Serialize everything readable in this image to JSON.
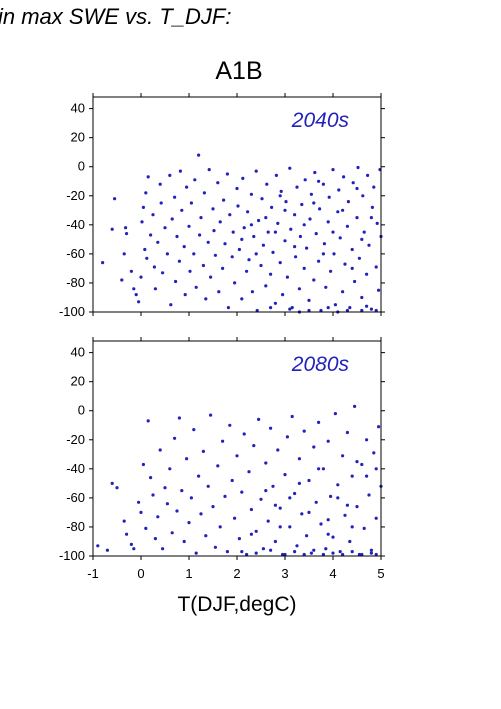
{
  "page": {
    "title": "in max SWE vs. T_DJF:",
    "scenario": "A1B",
    "xlabel": "T(DJF,degC)"
  },
  "colors": {
    "points": "#2222bb",
    "axes": "#000000"
  },
  "chart_data": [
    {
      "type": "scatter",
      "annotation": "2040s",
      "xlim": [
        -1,
        5
      ],
      "ylim": [
        -100,
        48
      ],
      "xticks": [
        -1,
        0,
        1,
        2,
        3,
        4,
        5
      ],
      "yticks": [
        -100,
        -80,
        -60,
        -40,
        -20,
        0,
        20,
        40
      ],
      "show_xtick_labels": false,
      "grid": false,
      "points": [
        [
          -0.8,
          -66
        ],
        [
          -0.6,
          -43
        ],
        [
          -0.55,
          -22
        ],
        [
          -0.4,
          -78
        ],
        [
          -0.35,
          -60
        ],
        [
          -0.32,
          -42
        ],
        [
          -0.3,
          -46
        ],
        [
          -0.2,
          -72
        ],
        [
          -0.15,
          -84
        ],
        [
          -0.1,
          -88
        ],
        [
          -0.05,
          -93
        ],
        [
          0.0,
          -76
        ],
        [
          0.02,
          -38
        ],
        [
          0.05,
          -28
        ],
        [
          0.08,
          -57
        ],
        [
          0.1,
          -18
        ],
        [
          0.12,
          -63
        ],
        [
          0.15,
          -7
        ],
        [
          0.2,
          -47
        ],
        [
          0.25,
          -33
        ],
        [
          0.28,
          -69
        ],
        [
          0.3,
          -84
        ],
        [
          0.35,
          -52
        ],
        [
          0.4,
          -12
        ],
        [
          0.42,
          -25
        ],
        [
          0.45,
          -73
        ],
        [
          0.5,
          -42
        ],
        [
          0.55,
          -60
        ],
        [
          0.6,
          -6
        ],
        [
          0.62,
          -95
        ],
        [
          0.65,
          -36
        ],
        [
          0.7,
          -21
        ],
        [
          0.72,
          -79
        ],
        [
          0.75,
          -48
        ],
        [
          0.8,
          -65
        ],
        [
          0.82,
          -3
        ],
        [
          0.85,
          -30
        ],
        [
          0.9,
          -55
        ],
        [
          0.92,
          -88
        ],
        [
          0.95,
          -14
        ],
        [
          1.0,
          -41
        ],
        [
          1.02,
          -72
        ],
        [
          1.05,
          -25
        ],
        [
          1.1,
          -60
        ],
        [
          1.12,
          -9
        ],
        [
          1.15,
          -83
        ],
        [
          1.2,
          8
        ],
        [
          1.22,
          -47
        ],
        [
          1.25,
          -35
        ],
        [
          1.3,
          -68
        ],
        [
          1.32,
          -18
        ],
        [
          1.35,
          -91
        ],
        [
          1.4,
          -52
        ],
        [
          1.42,
          -2
        ],
        [
          1.45,
          -76
        ],
        [
          1.5,
          -29
        ],
        [
          1.52,
          -44
        ],
        [
          1.55,
          -61
        ],
        [
          1.6,
          -11
        ],
        [
          1.62,
          -86
        ],
        [
          1.65,
          -38
        ],
        [
          1.7,
          -70
        ],
        [
          1.72,
          -23
        ],
        [
          1.75,
          -53
        ],
        [
          1.8,
          -5
        ],
        [
          1.82,
          -97
        ],
        [
          1.85,
          -33
        ],
        [
          1.9,
          -62
        ],
        [
          1.92,
          -45
        ],
        [
          1.95,
          -80
        ],
        [
          2.0,
          -15
        ],
        [
          2.02,
          -27
        ],
        [
          2.05,
          -57
        ],
        [
          2.1,
          -91
        ],
        [
          2.12,
          -8
        ],
        [
          2.15,
          -42
        ],
        [
          2.2,
          -72
        ],
        [
          2.22,
          -31
        ],
        [
          2.25,
          -64
        ],
        [
          2.3,
          -19
        ],
        [
          2.32,
          -86
        ],
        [
          2.35,
          -48
        ],
        [
          2.4,
          -3
        ],
        [
          2.42,
          -99
        ],
        [
          2.45,
          -37
        ],
        [
          2.5,
          -68
        ],
        [
          2.52,
          -22
        ],
        [
          2.55,
          -54
        ],
        [
          2.6,
          -82
        ],
        [
          2.62,
          -12
        ],
        [
          2.65,
          -45
        ],
        [
          2.7,
          -74
        ],
        [
          2.72,
          -28
        ],
        [
          2.75,
          -59
        ],
        [
          2.8,
          -94
        ],
        [
          2.82,
          -6
        ],
        [
          2.85,
          -39
        ],
        [
          2.9,
          -66
        ],
        [
          2.92,
          -17
        ],
        [
          2.95,
          -88
        ],
        [
          3.0,
          -51
        ],
        [
          3.02,
          -24
        ],
        [
          3.05,
          -76
        ],
        [
          3.1,
          -1
        ],
        [
          3.12,
          -43
        ],
        [
          3.15,
          -97
        ],
        [
          3.2,
          -33
        ],
        [
          3.22,
          -62
        ],
        [
          3.25,
          -14
        ],
        [
          3.3,
          -84
        ],
        [
          3.32,
          -48
        ],
        [
          3.35,
          -26
        ],
        [
          3.4,
          -70
        ],
        [
          3.42,
          -9
        ],
        [
          3.45,
          -56
        ],
        [
          3.5,
          -92
        ],
        [
          3.52,
          -36
        ],
        [
          3.55,
          -19
        ],
        [
          3.6,
          -78
        ],
        [
          3.62,
          -4
        ],
        [
          3.65,
          -46
        ],
        [
          3.7,
          -65
        ],
        [
          3.72,
          -29
        ],
        [
          3.75,
          -99
        ],
        [
          3.8,
          -12
        ],
        [
          3.82,
          -53
        ],
        [
          3.85,
          -83
        ],
        [
          3.9,
          -38
        ],
        [
          3.92,
          -21
        ],
        [
          3.95,
          -72
        ],
        [
          4.0,
          -2
        ],
        [
          4.02,
          -60
        ],
        [
          4.05,
          -95
        ],
        [
          4.1,
          -31
        ],
        [
          4.12,
          -16
        ],
        [
          4.15,
          -49
        ],
        [
          4.2,
          -86
        ],
        [
          4.22,
          -7
        ],
        [
          4.25,
          -67
        ],
        [
          4.3,
          -41
        ],
        [
          4.32,
          -24
        ],
        [
          4.35,
          -97
        ],
        [
          4.4,
          -57
        ],
        [
          4.42,
          -11
        ],
        [
          4.45,
          -79
        ],
        [
          4.5,
          -35
        ],
        [
          4.52,
          -0.5
        ],
        [
          4.55,
          -63
        ],
        [
          4.6,
          -90
        ],
        [
          4.62,
          -20
        ],
        [
          4.65,
          -45
        ],
        [
          4.7,
          -74
        ],
        [
          4.72,
          -6
        ],
        [
          4.75,
          -54
        ],
        [
          4.8,
          -98
        ],
        [
          4.82,
          -28
        ],
        [
          4.85,
          -14
        ],
        [
          4.9,
          -69
        ],
        [
          4.92,
          -39
        ],
        [
          4.95,
          -85
        ],
        [
          4.98,
          -2
        ],
        [
          5.0,
          -48
        ],
        [
          2.1,
          -50
        ],
        [
          2.3,
          -40
        ],
        [
          2.6,
          -35
        ],
        [
          2.8,
          -45
        ],
        [
          3.0,
          -30
        ],
        [
          3.2,
          -55
        ],
        [
          3.4,
          -40
        ],
        [
          3.6,
          -25
        ],
        [
          3.8,
          -60
        ],
        [
          4.0,
          -45
        ],
        [
          4.2,
          -30
        ],
        [
          4.4,
          -70
        ],
        [
          4.6,
          -50
        ],
        [
          4.8,
          -35
        ],
        [
          3.1,
          -98
        ],
        [
          3.5,
          -99
        ],
        [
          3.9,
          -97
        ],
        [
          4.3,
          -99
        ],
        [
          4.7,
          -96
        ],
        [
          4.9,
          -99
        ],
        [
          2.7,
          -97
        ],
        [
          3.3,
          -100
        ],
        [
          4.1,
          -100
        ],
        [
          4.6,
          -99
        ],
        [
          2.4,
          -60
        ],
        [
          2.9,
          -20
        ],
        [
          3.7,
          -10
        ],
        [
          4.5,
          -15
        ]
      ]
    },
    {
      "type": "scatter",
      "annotation": "2080s",
      "xlim": [
        -1,
        5
      ],
      "ylim": [
        -100,
        48
      ],
      "xticks": [
        -1,
        0,
        1,
        2,
        3,
        4,
        5
      ],
      "yticks": [
        -100,
        -80,
        -60,
        -40,
        -20,
        0,
        20,
        40
      ],
      "show_xtick_labels": true,
      "grid": false,
      "points": [
        [
          -0.9,
          -93
        ],
        [
          -0.7,
          -96
        ],
        [
          -0.6,
          -50
        ],
        [
          -0.5,
          -53
        ],
        [
          -0.35,
          -76
        ],
        [
          -0.3,
          -85
        ],
        [
          -0.2,
          -92
        ],
        [
          -0.15,
          -95
        ],
        [
          -0.05,
          -63
        ],
        [
          0.0,
          -70
        ],
        [
          0.05,
          -37
        ],
        [
          0.1,
          -81
        ],
        [
          0.15,
          -7
        ],
        [
          0.2,
          -46
        ],
        [
          0.25,
          -58
        ],
        [
          0.3,
          -88
        ],
        [
          0.35,
          -73
        ],
        [
          0.4,
          -27
        ],
        [
          0.45,
          -95
        ],
        [
          0.5,
          -53
        ],
        [
          0.55,
          -64
        ],
        [
          0.6,
          -40
        ],
        [
          0.65,
          -84
        ],
        [
          0.7,
          -19
        ],
        [
          0.75,
          -69
        ],
        [
          0.8,
          -5
        ],
        [
          0.85,
          -55
        ],
        [
          0.9,
          -90
        ],
        [
          0.95,
          -33
        ],
        [
          1.0,
          -77
        ],
        [
          1.05,
          -60
        ],
        [
          1.1,
          -13
        ],
        [
          1.15,
          -98
        ],
        [
          1.2,
          -45
        ],
        [
          1.25,
          -71
        ],
        [
          1.3,
          -28
        ],
        [
          1.35,
          -86
        ],
        [
          1.4,
          -52
        ],
        [
          1.45,
          -3
        ],
        [
          1.5,
          -66
        ],
        [
          1.55,
          -94
        ],
        [
          1.6,
          -38
        ],
        [
          1.65,
          -80
        ],
        [
          1.7,
          -21
        ],
        [
          1.75,
          -59
        ],
        [
          1.8,
          -97
        ],
        [
          1.85,
          -10
        ],
        [
          1.9,
          -48
        ],
        [
          1.95,
          -74
        ],
        [
          2.0,
          -31
        ],
        [
          2.05,
          -88
        ],
        [
          2.1,
          -56
        ],
        [
          2.15,
          -16
        ],
        [
          2.2,
          -99
        ],
        [
          2.25,
          -42
        ],
        [
          2.3,
          -68
        ],
        [
          2.35,
          -24
        ],
        [
          2.4,
          -83
        ],
        [
          2.45,
          -6
        ],
        [
          2.5,
          -61
        ],
        [
          2.55,
          -95
        ],
        [
          2.6,
          -36
        ],
        [
          2.65,
          -76
        ],
        [
          2.7,
          -12
        ],
        [
          2.75,
          -52
        ],
        [
          2.8,
          -90
        ],
        [
          2.85,
          -27
        ],
        [
          2.9,
          -67
        ],
        [
          2.95,
          -99
        ],
        [
          3.0,
          -44
        ],
        [
          3.05,
          -18
        ],
        [
          3.1,
          -80
        ],
        [
          3.15,
          -4
        ],
        [
          3.2,
          -57
        ],
        [
          3.25,
          -93
        ],
        [
          3.3,
          -33
        ],
        [
          3.35,
          -71
        ],
        [
          3.4,
          -14
        ],
        [
          3.45,
          -86
        ],
        [
          3.5,
          -48
        ],
        [
          3.55,
          -98
        ],
        [
          3.6,
          -25
        ],
        [
          3.65,
          -63
        ],
        [
          3.7,
          -8
        ],
        [
          3.75,
          -78
        ],
        [
          3.8,
          -40
        ],
        [
          3.85,
          -95
        ],
        [
          3.9,
          -21
        ],
        [
          3.95,
          -59
        ],
        [
          4.0,
          -87
        ],
        [
          4.05,
          -2
        ],
        [
          4.1,
          -51
        ],
        [
          4.15,
          -97
        ],
        [
          4.2,
          -31
        ],
        [
          4.25,
          -72
        ],
        [
          4.3,
          -15
        ],
        [
          4.35,
          -90
        ],
        [
          4.4,
          -45
        ],
        [
          4.45,
          3
        ],
        [
          4.5,
          -66
        ],
        [
          4.55,
          -99
        ],
        [
          4.6,
          -37
        ],
        [
          4.65,
          -81
        ],
        [
          4.7,
          -20
        ],
        [
          4.75,
          -58
        ],
        [
          4.8,
          -96
        ],
        [
          4.85,
          -29
        ],
        [
          4.9,
          -74
        ],
        [
          4.95,
          -11
        ],
        [
          5.0,
          -52
        ],
        [
          2.1,
          -97
        ],
        [
          2.4,
          -98
        ],
        [
          2.7,
          -96
        ],
        [
          3.0,
          -99
        ],
        [
          3.2,
          -97
        ],
        [
          3.4,
          -99
        ],
        [
          3.6,
          -96
        ],
        [
          3.8,
          -99
        ],
        [
          4.0,
          -98
        ],
        [
          4.2,
          -99
        ],
        [
          4.4,
          -97
        ],
        [
          4.6,
          -99
        ],
        [
          4.8,
          -98
        ],
        [
          4.9,
          -99
        ],
        [
          3.1,
          -60
        ],
        [
          3.5,
          -70
        ],
        [
          3.9,
          -75
        ],
        [
          4.3,
          -65
        ],
        [
          4.7,
          -45
        ],
        [
          2.6,
          -55
        ],
        [
          2.9,
          -80
        ],
        [
          3.3,
          -50
        ],
        [
          3.7,
          -40
        ],
        [
          4.1,
          -60
        ],
        [
          4.5,
          -35
        ],
        [
          4.9,
          -40
        ],
        [
          2.3,
          -85
        ],
        [
          2.8,
          -65
        ],
        [
          3.9,
          -85
        ],
        [
          4.4,
          -80
        ]
      ]
    }
  ]
}
